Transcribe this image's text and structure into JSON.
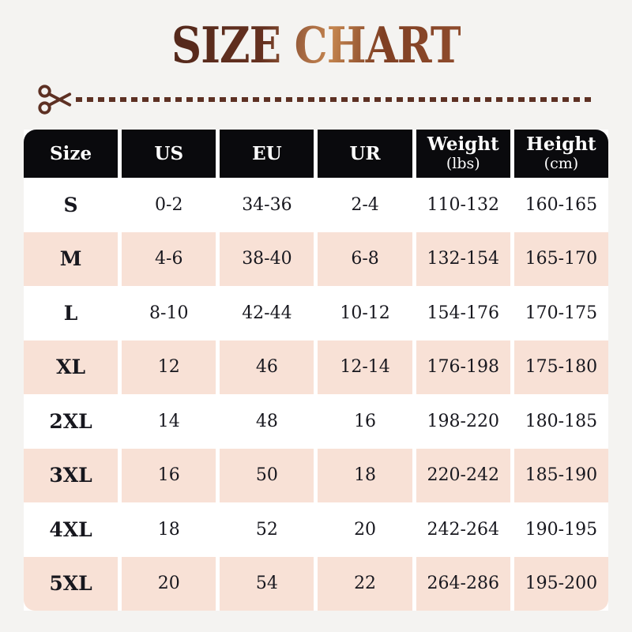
{
  "title": {
    "text": "SIZE CHART"
  },
  "title_gradient_stops": [
    "#53281b 0%",
    "#64301f 32%",
    "#a96c44 47%",
    "#c4854f 55%",
    "#7f3f23 72%",
    "#8f4c2d 100%"
  ],
  "divider": {
    "icon": "scissors-icon",
    "line_style": "dashed"
  },
  "colors": {
    "page_bg": "#f4f3f1",
    "header_bg": "#0a0a0d",
    "header_text": "#ffffff",
    "row_pink": "#f8e1d6",
    "row_white": "#ffffff",
    "table_text": "#17171e",
    "brown": "#5d3023"
  },
  "table": {
    "column_keys": [
      "size",
      "us",
      "eu",
      "ur",
      "weight_lbs",
      "height_cm"
    ],
    "header": {
      "columns": [
        {
          "label": "Size",
          "sub": ""
        },
        {
          "label": "US",
          "sub": ""
        },
        {
          "label": "EU",
          "sub": ""
        },
        {
          "label": "UR",
          "sub": ""
        },
        {
          "label": "Weight",
          "sub": "(lbs)"
        },
        {
          "label": "Height",
          "sub": "(cm)"
        }
      ]
    },
    "rows": [
      {
        "size": "S",
        "us": "0-2",
        "eu": "34-36",
        "ur": "2-4",
        "weight_lbs": "110-132",
        "height_cm": "160-165"
      },
      {
        "size": "M",
        "us": "4-6",
        "eu": "38-40",
        "ur": "6-8",
        "weight_lbs": "132-154",
        "height_cm": "165-170"
      },
      {
        "size": "L",
        "us": "8-10",
        "eu": "42-44",
        "ur": "10-12",
        "weight_lbs": "154-176",
        "height_cm": "170-175"
      },
      {
        "size": "XL",
        "us": "12",
        "eu": "46",
        "ur": "12-14",
        "weight_lbs": "176-198",
        "height_cm": "175-180"
      },
      {
        "size": "2XL",
        "us": "14",
        "eu": "48",
        "ur": "16",
        "weight_lbs": "198-220",
        "height_cm": "180-185"
      },
      {
        "size": "3XL",
        "us": "16",
        "eu": "50",
        "ur": "18",
        "weight_lbs": "220-242",
        "height_cm": "185-190"
      },
      {
        "size": "4XL",
        "us": "18",
        "eu": "52",
        "ur": "20",
        "weight_lbs": "242-264",
        "height_cm": "190-195"
      },
      {
        "size": "5XL",
        "us": "20",
        "eu": "54",
        "ur": "22",
        "weight_lbs": "264-286",
        "height_cm": "195-200"
      }
    ]
  }
}
